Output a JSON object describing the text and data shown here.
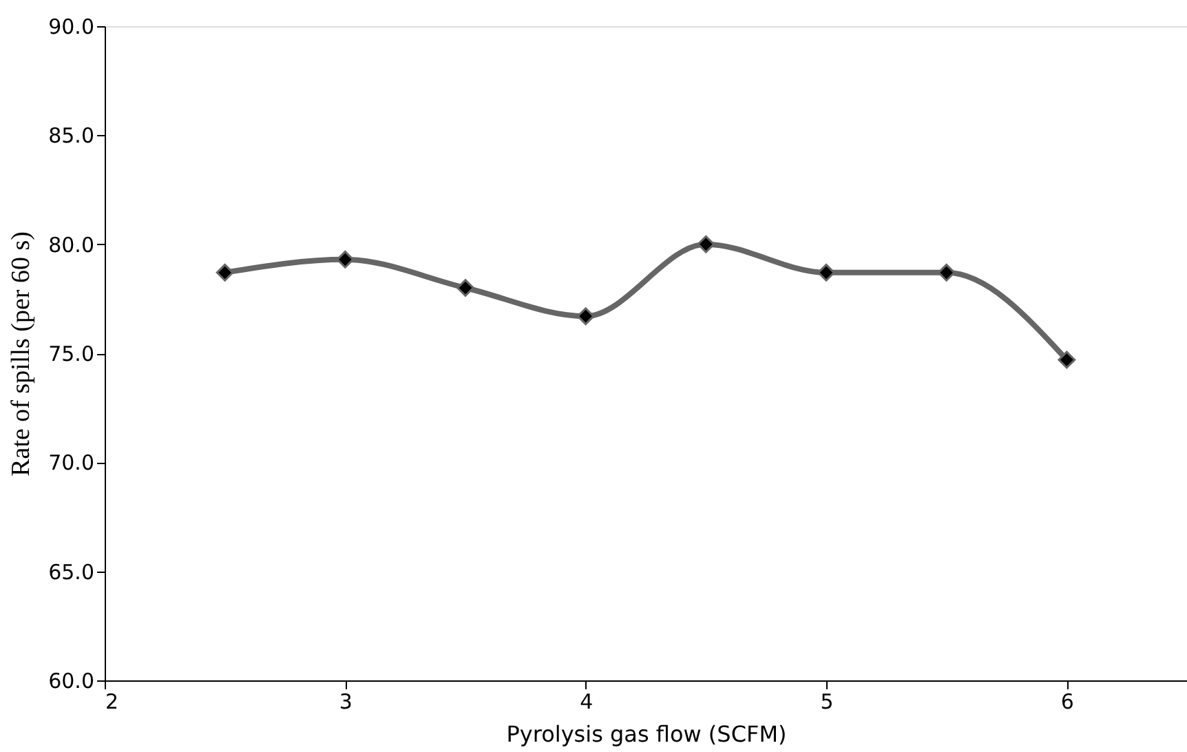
{
  "chart_data": {
    "type": "line",
    "xlabel": "Pyrolysis gas flow (SCFM)",
    "ylabel": "Rate of spills (per 60 s)",
    "x": [
      2.5,
      3,
      3.5,
      4,
      4.5,
      5,
      5.5,
      6
    ],
    "series": [
      {
        "color": "#666666",
        "values": [
          78.7,
          79.3,
          78.0,
          76.7,
          80.0,
          78.7,
          78.7,
          74.7
        ]
      }
    ],
    "xlim": [
      2,
      6.5
    ],
    "xticks": [
      2,
      3,
      4,
      5,
      6
    ],
    "ylim": [
      60,
      90
    ],
    "yticks": [
      {
        "value": 60,
        "label": "60.0"
      },
      {
        "value": 65,
        "label": "65.0"
      },
      {
        "value": 70,
        "label": "70.0"
      },
      {
        "value": 75,
        "label": "75.0"
      },
      {
        "value": 80,
        "label": "80.0"
      },
      {
        "value": 85,
        "label": "85.0"
      },
      {
        "value": 90,
        "label": "90.0"
      }
    ],
    "marker": "diamond",
    "line_style": "solid",
    "grid": false
  }
}
